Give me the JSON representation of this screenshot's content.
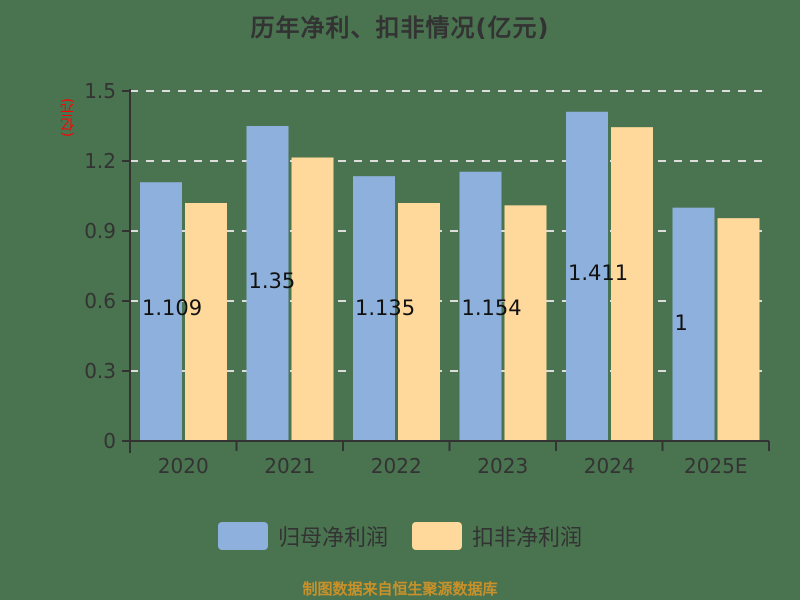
{
  "header": {
    "title": "历年净利、扣非情况(亿元)",
    "unit_label": "(亿元)"
  },
  "legend": [
    {
      "label": "归母净利润",
      "color": "#8eb0dc"
    },
    {
      "label": "扣非净利润",
      "color": "#ffd89c"
    }
  ],
  "footer": {
    "source": "制图数据来自恒生聚源数据库"
  },
  "colors": {
    "background": "#4a7350",
    "axis": "#333333",
    "grid": "#dddddd",
    "unit": "#ff0000",
    "source": "#c8912a"
  },
  "chart_data": {
    "type": "bar",
    "title": "历年净利、扣非情况(亿元)",
    "xlabel": "",
    "ylabel": "(亿元)",
    "ylim": [
      0,
      1.5
    ],
    "yticks": [
      0,
      0.3,
      0.6,
      0.9,
      1.2,
      1.5
    ],
    "ytick_labels": [
      "0",
      "0.3",
      "0.6",
      "0.9",
      "1.2",
      "1.5"
    ],
    "grid": true,
    "legend_position": "bottom",
    "categories": [
      "2020",
      "2021",
      "2022",
      "2023",
      "2024",
      "2025E"
    ],
    "series": [
      {
        "name": "归母净利润",
        "color": "#8eb0dc",
        "values": [
          1.109,
          1.35,
          1.135,
          1.154,
          1.411,
          1.0
        ]
      },
      {
        "name": "扣非净利润",
        "color": "#ffd89c",
        "values": [
          1.02,
          1.215,
          1.02,
          1.01,
          1.345,
          0.955
        ]
      }
    ],
    "data_labels": [
      "1.109",
      "1.35",
      "1.135",
      "1.154",
      "1.411",
      "1"
    ]
  }
}
